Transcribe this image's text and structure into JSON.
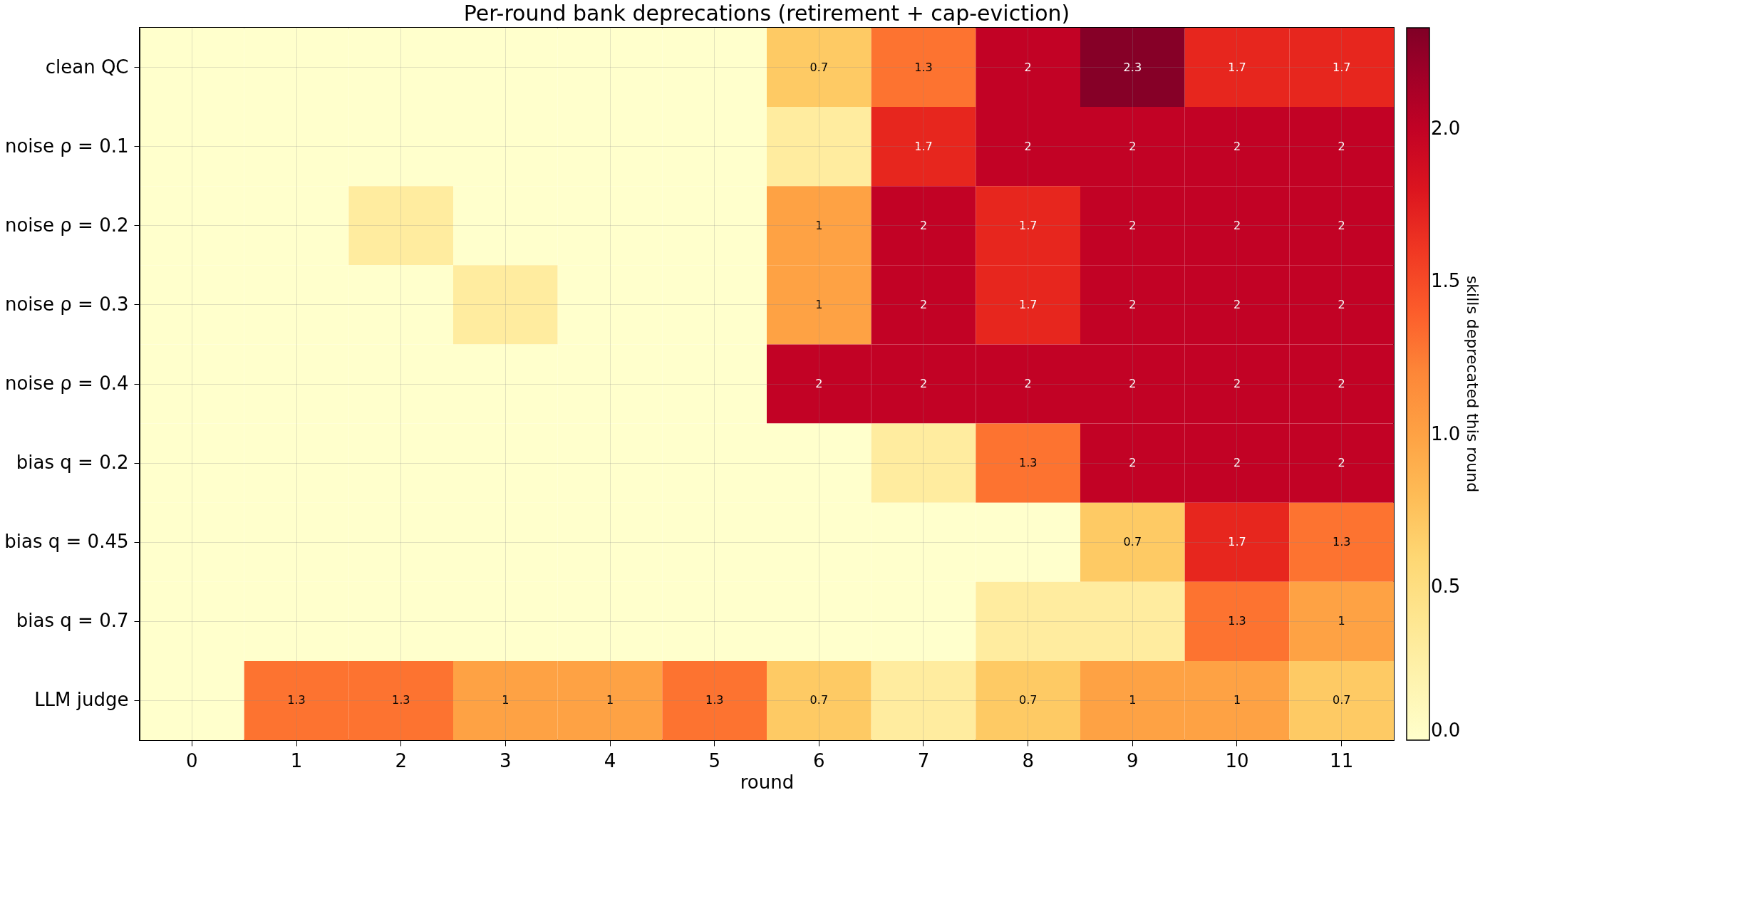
{
  "chart_data": {
    "type": "heatmap",
    "title": "Per-round bank deprecations (retirement + cap-eviction)",
    "xlabel": "round",
    "clabel": "skills deprecated this round",
    "categories": [
      "0",
      "1",
      "2",
      "3",
      "4",
      "5",
      "6",
      "7",
      "8",
      "9",
      "10",
      "11"
    ],
    "y_categories": [
      "clean QC",
      "noise ρ = 0.1",
      "noise ρ = 0.2",
      "noise ρ = 0.3",
      "noise ρ = 0.4",
      "bias q = 0.2",
      "bias q = 0.45",
      "bias q = 0.7",
      "LLM judge"
    ],
    "cells": [
      [
        0,
        0,
        0,
        0,
        0,
        0,
        0.7,
        1.3,
        2,
        2.3,
        1.7,
        1.7
      ],
      [
        0,
        0,
        0,
        0,
        0,
        0,
        0.3,
        1.7,
        2,
        2,
        2,
        2
      ],
      [
        0,
        0,
        0.3,
        0,
        0,
        0,
        1,
        2,
        1.7,
        2,
        2,
        2
      ],
      [
        0,
        0,
        0,
        0.3,
        0,
        0,
        1,
        2,
        1.7,
        2,
        2,
        2
      ],
      [
        0,
        0,
        0,
        0,
        0,
        0,
        2,
        2,
        2,
        2,
        2,
        2
      ],
      [
        0,
        0,
        0,
        0,
        0,
        0,
        0,
        0.3,
        1.3,
        2,
        2,
        2
      ],
      [
        0,
        0,
        0,
        0,
        0,
        0,
        0,
        0,
        0,
        0.7,
        1.7,
        1.3
      ],
      [
        0,
        0,
        0,
        0,
        0,
        0,
        0,
        0,
        0.3,
        0.3,
        1.3,
        1
      ],
      [
        0,
        1.3,
        1.3,
        1,
        1,
        1.3,
        0.7,
        0.3,
        0.7,
        1,
        1,
        0.7
      ]
    ],
    "cell_labels": [
      [
        null,
        null,
        null,
        null,
        null,
        null,
        "0.7",
        "1.3",
        "2",
        "2.3",
        "1.7",
        "1.7"
      ],
      [
        null,
        null,
        null,
        null,
        null,
        null,
        null,
        "1.7",
        "2",
        "2",
        "2",
        "2"
      ],
      [
        null,
        null,
        null,
        null,
        null,
        null,
        "1",
        "2",
        "1.7",
        "2",
        "2",
        "2"
      ],
      [
        null,
        null,
        null,
        null,
        null,
        null,
        "1",
        "2",
        "1.7",
        "2",
        "2",
        "2"
      ],
      [
        null,
        null,
        null,
        null,
        null,
        null,
        "2",
        "2",
        "2",
        "2",
        "2",
        "2"
      ],
      [
        null,
        null,
        null,
        null,
        null,
        null,
        null,
        null,
        "1.3",
        "2",
        "2",
        "2"
      ],
      [
        null,
        null,
        null,
        null,
        null,
        null,
        null,
        null,
        null,
        "0.7",
        "1.7",
        "1.3"
      ],
      [
        null,
        null,
        null,
        null,
        null,
        null,
        null,
        null,
        null,
        null,
        "1.3",
        "1"
      ],
      [
        null,
        "1.3",
        "1.3",
        "1",
        "1",
        "1.3",
        "0.7",
        null,
        "0.7",
        "1",
        "1",
        "0.7"
      ]
    ],
    "clim": [
      0,
      2.33
    ],
    "cticks": [
      {
        "value": 0,
        "label": "0.0"
      },
      {
        "value": 0.5,
        "label": "0.5"
      },
      {
        "value": 1,
        "label": "1.0"
      },
      {
        "value": 1.5,
        "label": "1.5"
      },
      {
        "value": 2,
        "label": "2.0"
      }
    ],
    "grid": true
  }
}
